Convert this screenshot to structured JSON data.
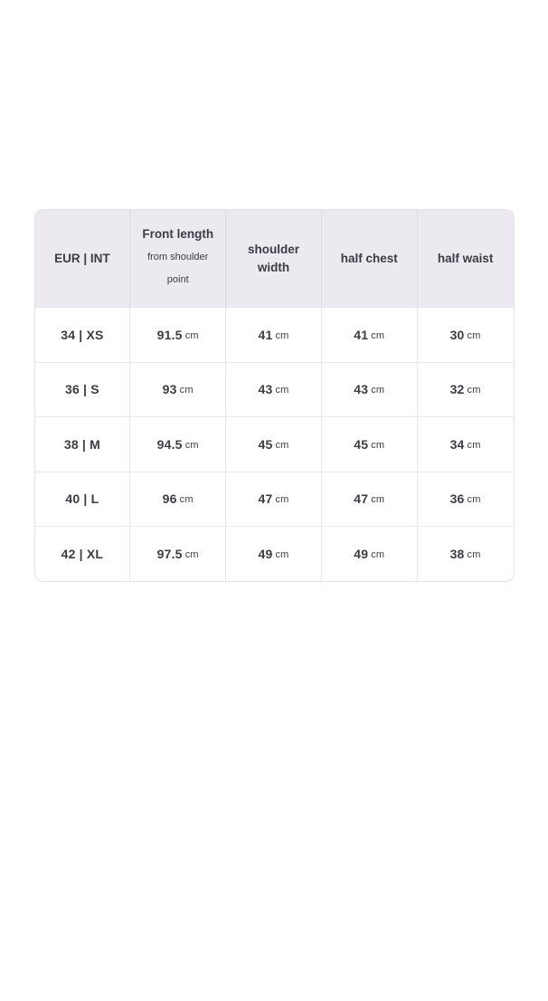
{
  "colors": {
    "header_bg": "#eceaf0",
    "border_outer": "#e2e0e6",
    "border_inner": "#e9e7ec",
    "header_divider": "#dedbe3",
    "text": "#3e3b45",
    "page_bg": "#ffffff"
  },
  "table": {
    "unit": "cm",
    "columns": [
      {
        "label": "EUR | INT",
        "sub": ""
      },
      {
        "label": "Front length",
        "sub": "from shoulder point"
      },
      {
        "label": "shoulder width",
        "sub": ""
      },
      {
        "label": "half chest",
        "sub": ""
      },
      {
        "label": "half waist",
        "sub": ""
      }
    ],
    "rows": [
      {
        "size": "34 | XS",
        "front_length": "91.5",
        "shoulder_width": "41",
        "half_chest": "41",
        "half_waist": "30"
      },
      {
        "size": "36 | S",
        "front_length": "93",
        "shoulder_width": "43",
        "half_chest": "43",
        "half_waist": "32"
      },
      {
        "size": "38 | M",
        "front_length": "94.5",
        "shoulder_width": "45",
        "half_chest": "45",
        "half_waist": "34"
      },
      {
        "size": "40 | L",
        "front_length": "96",
        "shoulder_width": "47",
        "half_chest": "47",
        "half_waist": "36"
      },
      {
        "size": "42 | XL",
        "front_length": "97.5",
        "shoulder_width": "49",
        "half_chest": "49",
        "half_waist": "38"
      }
    ]
  }
}
